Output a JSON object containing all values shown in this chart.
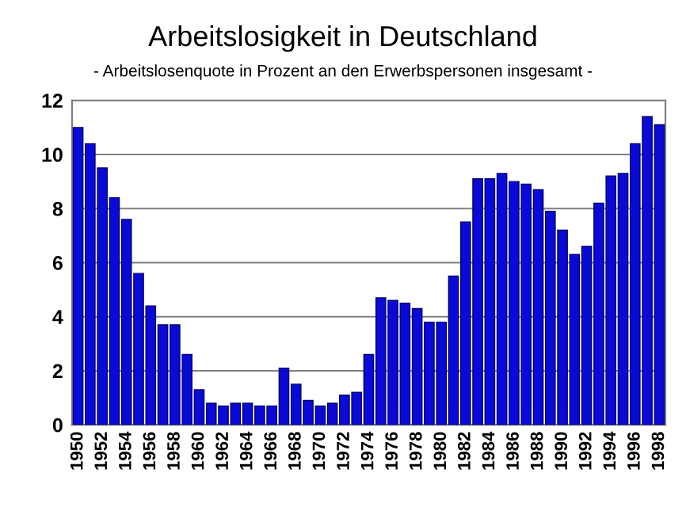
{
  "chart_data": {
    "type": "bar",
    "title": "Arbeitslosigkeit in Deutschland",
    "subtitle": "- Arbeitslosenquote in Prozent an den Erwerbspersonen insgesamt -",
    "categories": [
      "1950",
      null,
      "1952",
      null,
      "1954",
      null,
      "1956",
      null,
      "1958",
      null,
      "1960",
      null,
      "1962",
      null,
      "1964",
      null,
      "1966",
      null,
      "1968",
      null,
      "1970",
      null,
      "1972",
      null,
      "1974",
      null,
      "1976",
      null,
      "1978",
      null,
      "1980",
      null,
      "1982",
      null,
      "1984",
      null,
      "1986",
      null,
      "1988",
      null,
      "1990",
      null,
      "1992",
      null,
      "1994",
      null,
      "1996",
      null,
      "1998"
    ],
    "values": [
      11.0,
      10.4,
      9.5,
      8.4,
      7.6,
      5.6,
      4.4,
      3.7,
      3.7,
      2.6,
      1.3,
      0.8,
      0.7,
      0.8,
      0.8,
      0.7,
      0.7,
      2.1,
      1.5,
      0.9,
      0.7,
      0.8,
      1.1,
      1.2,
      2.6,
      4.7,
      4.6,
      4.5,
      4.3,
      3.8,
      3.8,
      5.5,
      7.5,
      9.1,
      9.1,
      9.3,
      9.0,
      8.9,
      8.7,
      7.9,
      7.2,
      6.3,
      6.6,
      8.2,
      9.2,
      9.3,
      10.4,
      11.4,
      11.1
    ],
    "color": "#0a0ad8",
    "ylim": [
      0,
      12
    ],
    "yticks": [
      0,
      2,
      4,
      6,
      8,
      10,
      12
    ],
    "grid": "y",
    "legend": false
  }
}
